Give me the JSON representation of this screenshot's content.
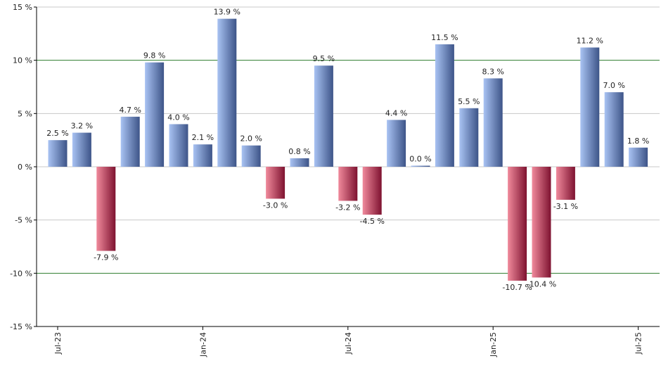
{
  "chart_data": {
    "type": "bar",
    "values": [
      2.5,
      3.2,
      -7.9,
      4.7,
      9.8,
      4.0,
      2.1,
      13.9,
      2.0,
      -3.0,
      0.8,
      9.5,
      -3.2,
      -4.5,
      4.4,
      0.0,
      11.5,
      5.5,
      8.3,
      -10.7,
      -10.4,
      -3.1,
      11.2,
      7.0,
      1.8
    ],
    "data_labels": [
      "2.5 %",
      "3.2 %",
      "-7.9 %",
      "4.7 %",
      "9.8 %",
      "4.0 %",
      "2.1 %",
      "13.9 %",
      "2.0 %",
      "-3.0 %",
      "0.8 %",
      "9.5 %",
      "-3.2 %",
      "-4.5 %",
      "4.4 %",
      "0.0 %",
      "11.5 %",
      "5.5 %",
      "8.3 %",
      "-10.7 %",
      "-10.4 %",
      "-3.1 %",
      "11.2 %",
      "7.0 %",
      "1.8 %"
    ],
    "x_tick_labels": [
      {
        "index": 0,
        "label": "Jul-23"
      },
      {
        "index": 6,
        "label": "Jan-24"
      },
      {
        "index": 12,
        "label": "Jul-24"
      },
      {
        "index": 18,
        "label": "Jan-25"
      },
      {
        "index": 24,
        "label": "Jul-25"
      }
    ],
    "y_ticks": [
      15,
      10,
      5,
      0,
      -5,
      -10,
      -15
    ],
    "y_tick_labels": [
      "15 %",
      "10 %",
      "5 %",
      "0 %",
      "-5 %",
      "-10 %",
      "-15 %"
    ],
    "ylim": [
      -15,
      15
    ],
    "highlight_lines": [
      10,
      -10
    ],
    "grid": true,
    "colors": {
      "positive_light": "#a9c3f3",
      "positive_dark": "#3d5488",
      "negative_light": "#f08a9c",
      "negative_dark": "#7e1230",
      "grid": "#c8c8c8",
      "highlight_line": "#2e7d2e",
      "axis": "#000000"
    }
  }
}
